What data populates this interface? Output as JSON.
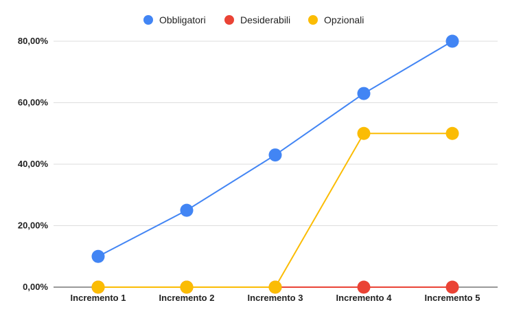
{
  "chart_data": {
    "type": "line",
    "title": "",
    "xlabel": "",
    "ylabel": "",
    "categories": [
      "Incremento 1",
      "Incremento 2",
      "Incremento 3",
      "Incremento 4",
      "Incremento 5"
    ],
    "series": [
      {
        "name": "Obbligatori",
        "color": "#4285f4",
        "values": [
          10,
          25,
          43,
          63,
          80
        ]
      },
      {
        "name": "Desiderabili",
        "color": "#ea4335",
        "values": [
          0,
          0,
          0,
          0,
          0
        ]
      },
      {
        "name": "Opzionali",
        "color": "#fbbc04",
        "values": [
          0,
          0,
          0,
          50,
          50
        ]
      }
    ],
    "ylim": [
      0,
      80
    ],
    "yticks": [
      0,
      20,
      40,
      60,
      80
    ],
    "ytick_labels": [
      "0,00%",
      "20,00%",
      "40,00%",
      "60,00%",
      "80,00%"
    ],
    "grid": true,
    "legend_position": "top"
  }
}
